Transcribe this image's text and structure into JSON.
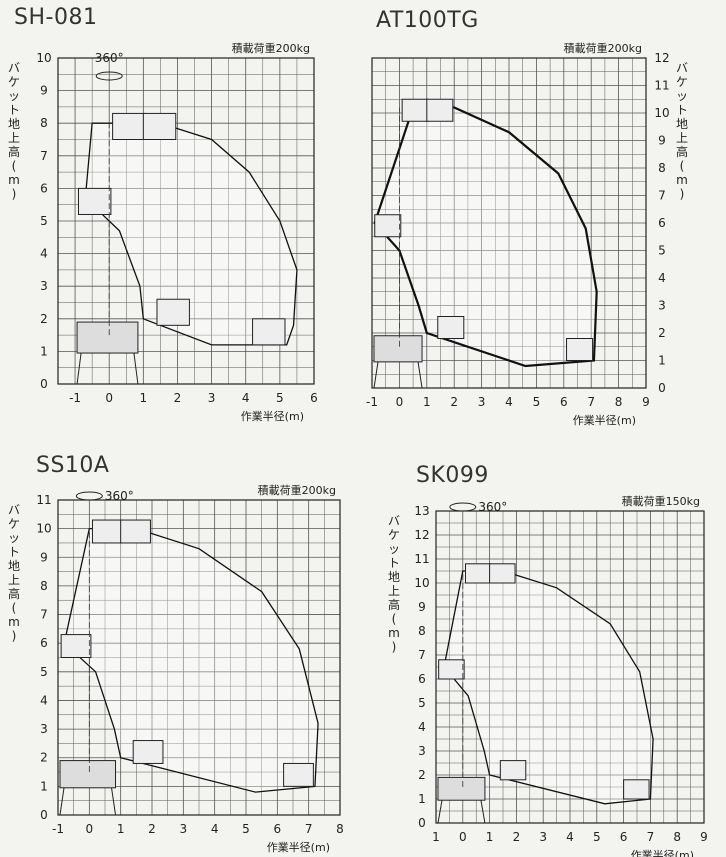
{
  "diagrams": [
    {
      "model": "SH-081",
      "load_text": "積載荷重200kg",
      "rotation_label": "360°",
      "x_label": "作業半径(m)",
      "y_label": "バケット地上高(m)",
      "x_ticks": [
        "-1",
        "0",
        "1",
        "2",
        "3",
        "4",
        "5",
        "6"
      ],
      "y_ticks": [
        "0",
        "1",
        "2",
        "3",
        "4",
        "5",
        "6",
        "7",
        "8",
        "9",
        "10"
      ],
      "y_axis_side": "left",
      "envelope_outline": [
        [
          -0.7,
          5.7
        ],
        [
          -0.5,
          8.0
        ],
        [
          1.5,
          8.0
        ],
        [
          3,
          7.5
        ],
        [
          4.1,
          6.5
        ],
        [
          5.0,
          5.0
        ],
        [
          5.5,
          3.5
        ],
        [
          5.4,
          1.8
        ],
        [
          5.2,
          1.2
        ],
        [
          3,
          1.2
        ],
        [
          1.0,
          2.0
        ],
        [
          0.9,
          3.0
        ],
        [
          0.3,
          4.7
        ],
        [
          -0.7,
          5.7
        ]
      ]
    },
    {
      "model": "AT100TG",
      "load_text": "積載荷重200kg",
      "rotation_label": "",
      "x_label": "作業半径(m)",
      "y_label": "バケット地上高(m)",
      "x_ticks": [
        "-1",
        "0",
        "1",
        "2",
        "3",
        "4",
        "5",
        "6",
        "7",
        "8",
        "9"
      ],
      "y_ticks": [
        "0",
        "1",
        "2",
        "3",
        "4",
        "5",
        "6",
        "7",
        "8",
        "9",
        "10",
        "11",
        "12"
      ],
      "y_axis_side": "right",
      "envelope_outline": [
        [
          -0.9,
          6.0
        ],
        [
          0.5,
          10.2
        ],
        [
          2,
          10.2
        ],
        [
          4,
          9.3
        ],
        [
          5.8,
          7.8
        ],
        [
          6.8,
          5.8
        ],
        [
          7.2,
          3.5
        ],
        [
          7.1,
          1.0
        ],
        [
          4.6,
          0.8
        ],
        [
          1,
          2.0
        ],
        [
          0.7,
          3.0
        ],
        [
          0,
          5.0
        ],
        [
          -0.9,
          6.0
        ]
      ]
    },
    {
      "model": "SS10A",
      "load_text": "積載荷重200kg",
      "rotation_label": "360°",
      "x_label": "作業半径(m)",
      "y_label": "バケット地上高(m)",
      "x_ticks": [
        "-1",
        "0",
        "1",
        "2",
        "3",
        "4",
        "5",
        "6",
        "7",
        "8"
      ],
      "y_ticks": [
        "0",
        "1",
        "2",
        "3",
        "4",
        "5",
        "6",
        "7",
        "8",
        "9",
        "10",
        "11"
      ],
      "y_axis_side": "left",
      "envelope_outline": [
        [
          -0.8,
          6.0
        ],
        [
          0,
          10.0
        ],
        [
          1.5,
          10.0
        ],
        [
          3.5,
          9.3
        ],
        [
          5.5,
          7.8
        ],
        [
          6.7,
          5.8
        ],
        [
          7.3,
          3.2
        ],
        [
          7.2,
          1.0
        ],
        [
          5.3,
          0.8
        ],
        [
          1,
          2.0
        ],
        [
          0.8,
          3.0
        ],
        [
          0.2,
          5.0
        ],
        [
          -0.8,
          6.0
        ]
      ]
    },
    {
      "model": "SK099",
      "load_text": "積載荷重150kg",
      "rotation_label": "360°",
      "x_label": "作業半径(m)",
      "y_label": "バケット地上高(m)",
      "x_ticks": [
        "1",
        "0",
        "1",
        "2",
        "3",
        "4",
        "5",
        "6",
        "7",
        "8",
        "9"
      ],
      "y_ticks": [
        "0",
        "1",
        "2",
        "3",
        "4",
        "5",
        "6",
        "7",
        "8",
        "9",
        "10",
        "11",
        "12",
        "13"
      ],
      "y_axis_side": "left",
      "envelope_outline": [
        [
          -0.7,
          6.5
        ],
        [
          0,
          10.5
        ],
        [
          1.5,
          10.5
        ],
        [
          3.5,
          9.8
        ],
        [
          5.5,
          8.3
        ],
        [
          6.6,
          6.3
        ],
        [
          7.1,
          3.5
        ],
        [
          7.0,
          1.0
        ],
        [
          5.3,
          0.8
        ],
        [
          1,
          2.0
        ],
        [
          0.8,
          3.0
        ],
        [
          0.2,
          5.3
        ],
        [
          -0.7,
          6.5
        ]
      ]
    }
  ]
}
